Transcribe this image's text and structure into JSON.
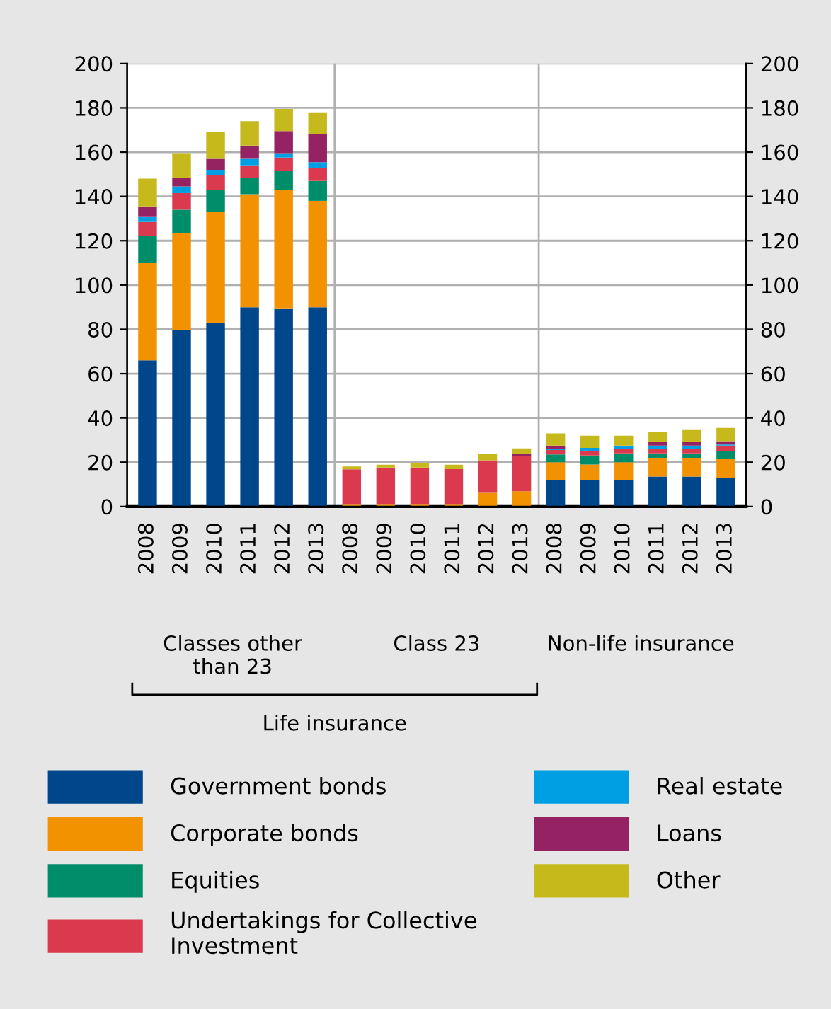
{
  "chart_data": {
    "type": "bar",
    "stacked": true,
    "categories": [
      "2008",
      "2009",
      "2010",
      "2011",
      "2012",
      "2013",
      "2008",
      "2009",
      "2010",
      "2011",
      "2012",
      "2013",
      "2008",
      "2009",
      "2010",
      "2011",
      "2012",
      "2013"
    ],
    "series": [
      {
        "name": "Government bonds",
        "color": "#00468b",
        "values": [
          66,
          79.5,
          83,
          90,
          89.5,
          90,
          0,
          0,
          0,
          0,
          0,
          0,
          12,
          12,
          12,
          13.5,
          13.5,
          13
        ]
      },
      {
        "name": "Corporate bonds",
        "color": "#f39200",
        "values": [
          44,
          44,
          50,
          51,
          53.5,
          48,
          0.8,
          0.8,
          0.8,
          0.8,
          6.2,
          6.9,
          8,
          7,
          8,
          8.5,
          8.5,
          8.5
        ]
      },
      {
        "name": "Equities",
        "color": "#008d6a",
        "values": [
          12,
          10.5,
          10,
          7.5,
          8.5,
          9,
          0,
          0,
          0,
          0,
          0,
          0,
          3.5,
          4,
          4,
          2,
          2,
          3.5
        ]
      },
      {
        "name": "Undertakings for Collective Investment",
        "color": "#db3a4e",
        "values": [
          6.5,
          7.5,
          6.5,
          5.5,
          6,
          6,
          16,
          16.8,
          16.8,
          16.1,
          14.7,
          16,
          2,
          2,
          2,
          2,
          2,
          2.5
        ]
      },
      {
        "name": "Real estate",
        "color": "#009fe3",
        "values": [
          2.5,
          3,
          2.5,
          3,
          2,
          2.5,
          0,
          0,
          0,
          0,
          0,
          0,
          0.5,
          1.5,
          1.5,
          1.5,
          1.5,
          0.5
        ]
      },
      {
        "name": "Loans",
        "color": "#952262",
        "values": [
          4.5,
          4,
          5,
          6,
          10,
          12.5,
          0,
          0,
          0,
          0,
          0,
          0.7,
          1.5,
          0,
          0,
          1.5,
          1.5,
          1.5
        ]
      },
      {
        "name": "Other",
        "color": "#c5b91b",
        "values": [
          12.5,
          11,
          12,
          11,
          10,
          10,
          1.3,
          1.3,
          2,
          2,
          2.7,
          2.6,
          5.5,
          5.5,
          4.5,
          4.5,
          5.5,
          6
        ]
      }
    ],
    "ylim": [
      0,
      200
    ],
    "yticks": [
      0,
      20,
      40,
      60,
      80,
      100,
      120,
      140,
      160,
      180,
      200
    ],
    "y2lim": [
      0,
      200
    ],
    "y2ticks": [
      0,
      20,
      40,
      60,
      80,
      100,
      120,
      140,
      160,
      180,
      200
    ],
    "grid": "y",
    "legend": "bottom",
    "annotations": [
      "Classes other than 23",
      "Class 23",
      "Non-life insurance",
      "Life insurance"
    ]
  }
}
